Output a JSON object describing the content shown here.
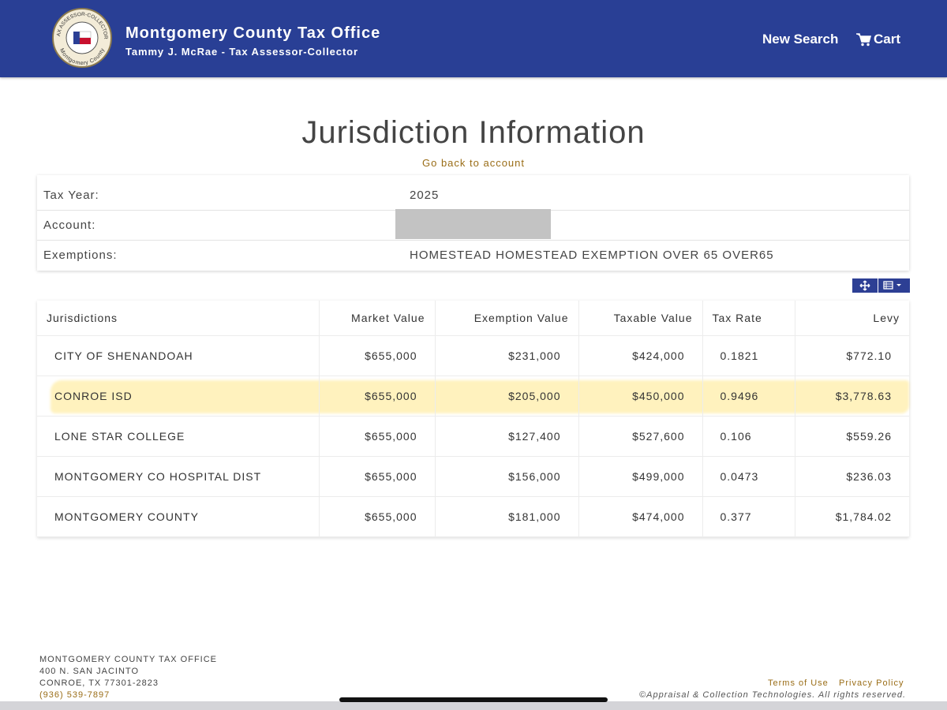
{
  "header": {
    "seal_top": "TAX ASSESSOR-COLLECTOR",
    "seal_bottom": "Montgomery County",
    "title": "Montgomery County Tax Office",
    "subtitle": "Tammy J. McRae - Tax Assessor-Collector",
    "nav": [
      "New Search",
      "Cart"
    ]
  },
  "page": {
    "title": "Jurisdiction Information",
    "back_link": "Go back to account"
  },
  "account_info": {
    "rows": [
      {
        "label": "Tax Year:",
        "value": "2025"
      },
      {
        "label": "Account:"
      },
      {
        "label": "Exemptions:",
        "value": "HOMESTEAD HOMESTEAD EXEMPTION OVER 65 OVER65"
      }
    ]
  },
  "jurisdictions": {
    "columns": [
      "Jurisdictions",
      "Market Value",
      "Exemption Value",
      "Taxable Value",
      "Tax Rate",
      "Levy"
    ],
    "rows": [
      [
        "CITY OF SHENANDOAH",
        "$655,000",
        "$231,000",
        "$424,000",
        "0.1821",
        "$772.10"
      ],
      [
        "CONROE ISD",
        "$655,000",
        "$205,000",
        "$450,000",
        "0.9496",
        "$3,778.63"
      ],
      [
        "LONE STAR COLLEGE",
        "$655,000",
        "$127,400",
        "$527,600",
        "0.106",
        "$559.26"
      ],
      [
        "MONTGOMERY CO HOSPITAL DIST",
        "$655,000",
        "$156,000",
        "$499,000",
        "0.0473",
        "$236.03"
      ],
      [
        "MONTGOMERY COUNTY",
        "$655,000",
        "$181,000",
        "$474,000",
        "0.377",
        "$1,784.02"
      ]
    ],
    "highlighted_row": 1
  },
  "footer": {
    "address": [
      "MONTGOMERY COUNTY TAX OFFICE",
      "400 N. SAN JACINTO",
      "CONROE, TX 77301-2823"
    ],
    "phone": "(936) 539-7897",
    "links": [
      "Terms of Use",
      "Privacy Policy"
    ],
    "copyright": "©Appraisal & Collection Technologies. All rights reserved."
  }
}
